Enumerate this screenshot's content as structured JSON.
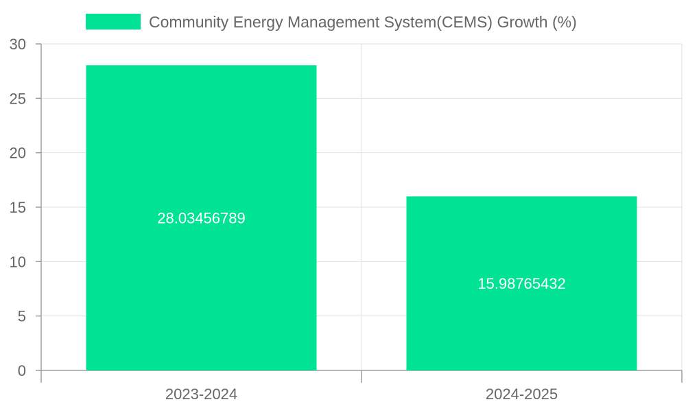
{
  "chart_data": {
    "type": "bar",
    "categories": [
      "2023-2024",
      "2024-2025"
    ],
    "series": [
      {
        "name": "Community Energy Management System(CEMS) Growth (%)",
        "values": [
          28.03456789,
          15.98765432
        ],
        "value_labels": [
          "28.03456789",
          "15.98765432"
        ],
        "color": "#00e394"
      }
    ],
    "title": "",
    "xlabel": "",
    "ylabel": "",
    "ylim": [
      0,
      30
    ],
    "yticks": [
      0,
      5,
      10,
      15,
      20,
      25,
      30
    ],
    "grid": true,
    "legend_position": "top"
  }
}
